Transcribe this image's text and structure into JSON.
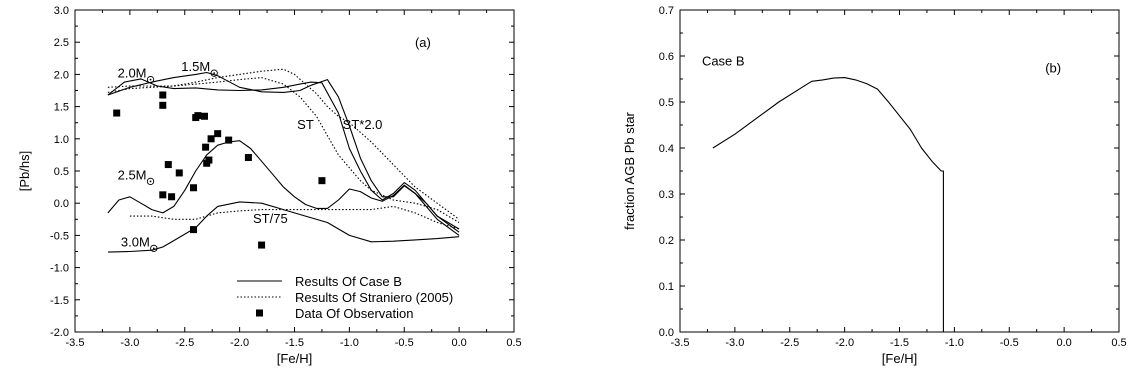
{
  "chart_data": [
    {
      "type": "line",
      "panel_label": "(a)",
      "xlabel": "[Fe/H]",
      "ylabel": "[Pb/hs]",
      "xlim": [
        -3.5,
        0.5
      ],
      "ylim": [
        -2.0,
        3.0
      ],
      "xticks": [
        "-3.5",
        "-3.0",
        "-2.5",
        "-2.0",
        "-1.5",
        "-1.0",
        "-0.5",
        "0.0",
        "0.5"
      ],
      "yticks": [
        "-2.0",
        "-1.5",
        "-1.0",
        "-0.5",
        "0.0",
        "0.5",
        "1.0",
        "1.5",
        "2.0",
        "2.5",
        "3.0"
      ],
      "grid": false,
      "legend": {
        "placement": "bottom-right",
        "entries": [
          "Results Of Case B",
          "Results Of Straniero (2005)",
          "Data Of Observation"
        ]
      },
      "annotations": [
        {
          "text": "2.0M",
          "x": -2.98,
          "y": 1.95,
          "sun": true
        },
        {
          "text": "1.5M",
          "x": -2.4,
          "y": 2.05,
          "sun": true
        },
        {
          "text": "2.5M",
          "x": -2.98,
          "y": 0.37,
          "sun": true
        },
        {
          "text": "3.0M",
          "x": -2.95,
          "y": -0.67,
          "sun": true
        },
        {
          "text": "ST",
          "x": -1.4,
          "y": 1.15,
          "sun": false
        },
        {
          "text": "ST*2.0",
          "x": -0.88,
          "y": 1.15,
          "sun": false
        },
        {
          "text": "ST/75",
          "x": -1.72,
          "y": -0.31,
          "sun": false
        }
      ],
      "series": [
        {
          "style": "solid",
          "x": [
            -3.2,
            -3.05,
            -2.9,
            -2.75,
            -2.6,
            -2.4,
            -2.2,
            -2.0,
            -1.8,
            -1.6,
            -1.45,
            -1.35,
            -1.25,
            -1.1,
            -1.0,
            -0.9,
            -0.8,
            -0.7,
            -0.6,
            -0.5,
            -0.4,
            -0.3,
            -0.2,
            0.0
          ],
          "y": [
            1.68,
            1.88,
            1.93,
            1.82,
            1.78,
            1.79,
            1.76,
            1.75,
            1.76,
            1.8,
            1.85,
            1.88,
            1.87,
            1.4,
            0.85,
            0.5,
            0.2,
            0.05,
            0.15,
            0.32,
            0.2,
            0.0,
            -0.2,
            -0.4
          ]
        },
        {
          "style": "solid",
          "x": [
            -3.2,
            -3.0,
            -2.8,
            -2.6,
            -2.4,
            -2.3,
            -2.2,
            -2.0,
            -1.8,
            -1.6,
            -1.45,
            -1.35,
            -1.2,
            -1.1,
            -1.0,
            -0.9,
            -0.8,
            -0.7,
            -0.6,
            -0.5,
            -0.4,
            -0.3,
            -0.2,
            0.0
          ],
          "y": [
            1.68,
            1.8,
            1.88,
            1.95,
            2.0,
            2.03,
            1.98,
            1.8,
            1.73,
            1.72,
            1.75,
            1.83,
            1.92,
            1.65,
            1.2,
            0.7,
            0.35,
            0.1,
            0.1,
            0.27,
            0.15,
            0.0,
            -0.2,
            -0.45
          ]
        },
        {
          "style": "solid",
          "x": [
            -3.2,
            -3.1,
            -3.0,
            -2.9,
            -2.8,
            -2.7,
            -2.6,
            -2.5,
            -2.4,
            -2.3,
            -2.2,
            -2.1,
            -2.0,
            -1.9,
            -1.8,
            -1.7,
            -1.6,
            -1.5,
            -1.4,
            -1.3,
            -1.2,
            -1.1,
            -1.0,
            -0.9,
            -0.8,
            -0.7,
            -0.6,
            -0.5,
            -0.4,
            -0.3,
            -0.2,
            0.0
          ],
          "y": [
            -0.15,
            0.05,
            0.1,
            0.0,
            -0.1,
            -0.15,
            -0.05,
            0.2,
            0.5,
            0.75,
            0.9,
            0.95,
            0.97,
            0.85,
            0.65,
            0.45,
            0.25,
            0.1,
            -0.02,
            -0.08,
            -0.08,
            0.05,
            0.22,
            0.18,
            0.08,
            0.03,
            0.12,
            0.28,
            0.15,
            -0.05,
            -0.25,
            -0.5
          ]
        },
        {
          "style": "solid",
          "x": [
            -3.2,
            -3.0,
            -2.8,
            -2.7,
            -2.6,
            -2.5,
            -2.4,
            -2.3,
            -2.2,
            -2.0,
            -1.8,
            -1.6,
            -1.4,
            -1.2,
            -1.0,
            -0.8,
            -0.6,
            -0.4,
            -0.2,
            0.0
          ],
          "y": [
            -0.76,
            -0.75,
            -0.73,
            -0.68,
            -0.58,
            -0.48,
            -0.38,
            -0.2,
            -0.05,
            0.02,
            0.0,
            -0.1,
            -0.2,
            -0.3,
            -0.5,
            -0.6,
            -0.59,
            -0.57,
            -0.55,
            -0.52
          ]
        },
        {
          "style": "dotted",
          "x": [
            -3.2,
            -3.0,
            -2.8,
            -2.6,
            -2.4,
            -2.2,
            -2.0,
            -1.8,
            -1.6,
            -1.5,
            -1.4,
            -1.3,
            -1.2,
            -1.1,
            -1.0,
            -0.8,
            -0.6,
            -0.4,
            -0.2,
            0.0
          ],
          "y": [
            1.72,
            1.78,
            1.8,
            1.82,
            1.88,
            1.95,
            2.0,
            2.05,
            2.08,
            2.0,
            1.85,
            1.7,
            1.5,
            1.35,
            1.25,
            0.95,
            0.6,
            0.25,
            0.0,
            -0.25
          ]
        },
        {
          "style": "dotted",
          "x": [
            -3.2,
            -3.0,
            -2.8,
            -2.6,
            -2.4,
            -2.2,
            -2.0,
            -1.8,
            -1.6,
            -1.45,
            -1.3,
            -1.2,
            -1.1,
            -1.0,
            -0.9,
            -0.8,
            -0.6,
            -0.4,
            -0.2,
            0.0
          ],
          "y": [
            1.8,
            1.82,
            1.82,
            1.82,
            1.85,
            1.88,
            1.92,
            1.95,
            1.85,
            1.65,
            1.35,
            1.05,
            0.75,
            0.55,
            0.35,
            0.2,
            0.05,
            0.0,
            -0.1,
            -0.3
          ]
        },
        {
          "style": "dotted",
          "x": [
            -3.0,
            -2.8,
            -2.6,
            -2.4,
            -2.2,
            -2.0,
            -1.8,
            -1.6,
            -1.4,
            -1.2,
            -1.0,
            -0.8,
            -0.6,
            -0.4,
            -0.2,
            0.0
          ],
          "y": [
            -0.2,
            -0.2,
            -0.25,
            -0.25,
            -0.15,
            -0.12,
            -0.1,
            -0.1,
            -0.1,
            -0.1,
            -0.1,
            -0.1,
            -0.05,
            -0.15,
            -0.3,
            -0.4
          ]
        },
        {
          "style": "markers",
          "x": [
            -3.12,
            -2.7,
            -2.7,
            -2.7,
            -2.65,
            -2.62,
            -2.55,
            -2.42,
            -2.42,
            -2.4,
            -2.38,
            -2.32,
            -2.31,
            -2.3,
            -2.28,
            -2.26,
            -2.2,
            -2.1,
            -1.92,
            -1.8,
            -1.25
          ],
          "y": [
            1.4,
            1.68,
            1.52,
            0.13,
            0.6,
            0.1,
            0.47,
            0.24,
            -0.41,
            1.33,
            1.36,
            1.35,
            0.87,
            0.62,
            0.67,
            1.0,
            1.08,
            0.98,
            0.71,
            -0.65,
            0.35
          ]
        }
      ]
    },
    {
      "type": "line",
      "panel_label": "(b)",
      "annotation": "Case B",
      "xlabel": "[Fe/H]",
      "ylabel": "fraction AGB Pb star",
      "xlim": [
        -3.5,
        0.5
      ],
      "ylim": [
        0.0,
        0.7
      ],
      "xticks": [
        "-3.5",
        "-3.0",
        "-2.5",
        "-2.0",
        "-1.5",
        "-1.0",
        "-0.5",
        "0.0",
        "0.5"
      ],
      "yticks": [
        "0.0",
        "0.1",
        "0.2",
        "0.3",
        "0.4",
        "0.5",
        "0.6",
        "0.7"
      ],
      "grid": false,
      "series": [
        {
          "style": "solid",
          "x": [
            -3.2,
            -3.0,
            -2.8,
            -2.6,
            -2.4,
            -2.3,
            -2.2,
            -2.1,
            -2.0,
            -1.9,
            -1.8,
            -1.7,
            -1.6,
            -1.5,
            -1.4,
            -1.3,
            -1.2,
            -1.12,
            -1.1,
            -1.1
          ],
          "y": [
            0.4,
            0.43,
            0.465,
            0.5,
            0.53,
            0.545,
            0.548,
            0.552,
            0.553,
            0.548,
            0.54,
            0.528,
            0.5,
            0.47,
            0.44,
            0.4,
            0.37,
            0.35,
            0.35,
            0.0
          ]
        }
      ]
    }
  ]
}
